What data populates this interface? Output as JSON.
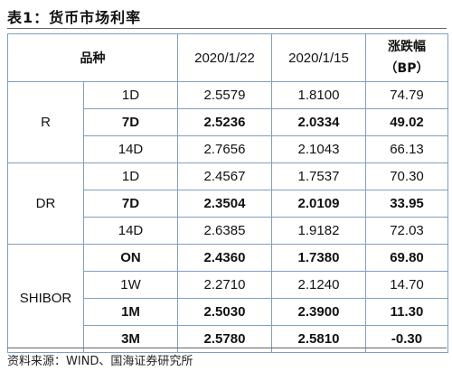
{
  "title": "表1：货币市场利率",
  "table": {
    "headers": {
      "variety": "品种",
      "date1": "2020/1/22",
      "date2": "2020/1/15",
      "change_line1": "涨跌幅",
      "change_line2": "（BP）"
    },
    "groups": [
      {
        "name": "R",
        "rows": [
          {
            "tenor": "1D",
            "v1": "2.5579",
            "v2": "1.8100",
            "chg": "74.79",
            "bold": false
          },
          {
            "tenor": "7D",
            "v1": "2.5236",
            "v2": "2.0334",
            "chg": "49.02",
            "bold": true
          },
          {
            "tenor": "14D",
            "v1": "2.7656",
            "v2": "2.1043",
            "chg": "66.13",
            "bold": false
          }
        ]
      },
      {
        "name": "DR",
        "rows": [
          {
            "tenor": "1D",
            "v1": "2.4567",
            "v2": "1.7537",
            "chg": "70.30",
            "bold": false
          },
          {
            "tenor": "7D",
            "v1": "2.3504",
            "v2": "2.0109",
            "chg": "33.95",
            "bold": true
          },
          {
            "tenor": "14D",
            "v1": "2.6385",
            "v2": "1.9182",
            "chg": "72.03",
            "bold": false
          }
        ]
      },
      {
        "name": "SHIBOR",
        "rows": [
          {
            "tenor": "ON",
            "v1": "2.4360",
            "v2": "1.7380",
            "chg": "69.80",
            "bold": true
          },
          {
            "tenor": "1W",
            "v1": "2.2710",
            "v2": "2.1240",
            "chg": "14.70",
            "bold": false
          },
          {
            "tenor": "1M",
            "v1": "2.5030",
            "v2": "2.3900",
            "chg": "11.30",
            "bold": true
          },
          {
            "tenor": "3M",
            "v1": "2.5780",
            "v2": "2.5810",
            "chg": "-0.30",
            "bold": true
          }
        ]
      }
    ]
  },
  "source": "资料来源：WIND、国海证券研究所"
}
